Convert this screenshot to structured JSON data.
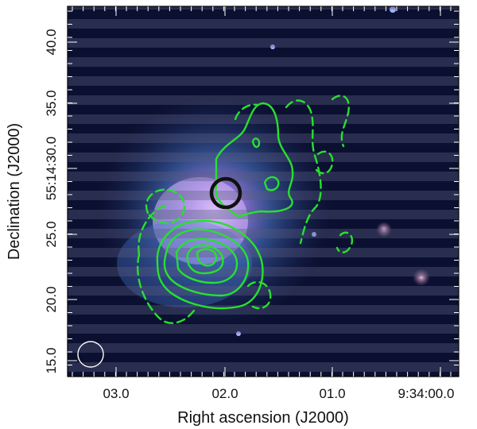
{
  "figure": {
    "xlabel": "Right ascension (J2000)",
    "ylabel": "Declination (J2000)",
    "x_ticks": [
      "03.0",
      "02.0",
      "01.0",
      "9:34:00.0"
    ],
    "y_ticks": [
      "40.0",
      "35.0",
      "55:14:30.0",
      "25.0",
      "20.0",
      "15.0"
    ],
    "colors": {
      "background": "#0b1030",
      "stripe": "#55587a",
      "galaxy_core": "#c9a7ff",
      "galaxy_halo": "#4470c9",
      "contour": "#27e02f",
      "marker_circle": "#111111",
      "beam_circle": "#ffffff"
    },
    "elements": {
      "image": "false-color galaxy image with horizontal striping",
      "contours": "green solid and dashed contours",
      "marker": "black circle near center",
      "beam": "white circle bottom-left"
    }
  }
}
